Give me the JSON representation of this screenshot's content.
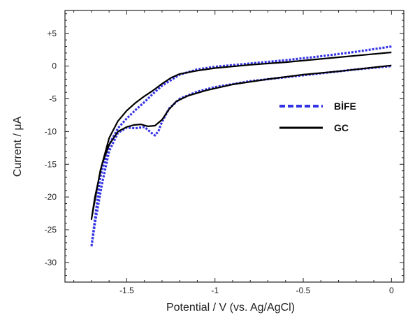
{
  "chart_data": {
    "type": "line",
    "title": "",
    "xlabel": "Potential / V (vs. Ag/AgCl)",
    "ylabel": "Current / μA",
    "xlim": [
      -1.85,
      0.07
    ],
    "ylim": [
      -33,
      8.5
    ],
    "x_ticks": [
      {
        "value": -1.5,
        "label": "-1.5"
      },
      {
        "value": -1.0,
        "label": "-1"
      },
      {
        "value": -0.5,
        "label": "-0.5"
      },
      {
        "value": 0.0,
        "label": "0"
      }
    ],
    "y_ticks": [
      {
        "value": 5,
        "label": "+5"
      },
      {
        "value": 0,
        "label": "0"
      },
      {
        "value": -5,
        "label": "-5"
      },
      {
        "value": -10,
        "label": "-10"
      },
      {
        "value": -15,
        "label": "-15"
      },
      {
        "value": -20,
        "label": "-20"
      },
      {
        "value": -25,
        "label": "-25"
      },
      {
        "value": -30,
        "label": "-30"
      }
    ],
    "grid": false,
    "legend_position": "right",
    "series": [
      {
        "name": "BİFE",
        "color": "#3333e6",
        "style": "dotted",
        "points": [
          [
            0.0,
            3.0
          ],
          [
            -0.2,
            2.2
          ],
          [
            -0.4,
            1.5
          ],
          [
            -0.6,
            0.9
          ],
          [
            -0.8,
            0.4
          ],
          [
            -1.0,
            -0.1
          ],
          [
            -1.1,
            -0.5
          ],
          [
            -1.2,
            -1.3
          ],
          [
            -1.3,
            -3.0
          ],
          [
            -1.35,
            -4.2
          ],
          [
            -1.4,
            -5.5
          ],
          [
            -1.45,
            -6.7
          ],
          [
            -1.5,
            -8.0
          ],
          [
            -1.55,
            -9.5
          ],
          [
            -1.6,
            -12.0
          ],
          [
            -1.65,
            -17.0
          ],
          [
            -1.7,
            -27.6
          ],
          [
            -1.68,
            -24.0
          ],
          [
            -1.64,
            -18.0
          ],
          [
            -1.6,
            -13.0
          ],
          [
            -1.55,
            -10.2
          ],
          [
            -1.5,
            -9.4
          ],
          [
            -1.45,
            -9.5
          ],
          [
            -1.4,
            -9.3
          ],
          [
            -1.36,
            -10.2
          ],
          [
            -1.34,
            -10.6
          ],
          [
            -1.32,
            -9.9
          ],
          [
            -1.3,
            -8.5
          ],
          [
            -1.26,
            -6.5
          ],
          [
            -1.2,
            -5.0
          ],
          [
            -1.1,
            -3.9
          ],
          [
            -1.0,
            -3.2
          ],
          [
            -0.8,
            -2.3
          ],
          [
            -0.6,
            -1.7
          ],
          [
            -0.4,
            -1.1
          ],
          [
            -0.2,
            -0.5
          ],
          [
            0.0,
            0.0
          ]
        ]
      },
      {
        "name": "GC",
        "color": "#000000",
        "style": "solid",
        "points": [
          [
            0.0,
            2.1
          ],
          [
            -0.2,
            1.6
          ],
          [
            -0.4,
            1.1
          ],
          [
            -0.6,
            0.6
          ],
          [
            -0.8,
            0.2
          ],
          [
            -1.0,
            -0.3
          ],
          [
            -1.1,
            -0.7
          ],
          [
            -1.2,
            -1.2
          ],
          [
            -1.25,
            -1.8
          ],
          [
            -1.3,
            -2.7
          ],
          [
            -1.35,
            -3.7
          ],
          [
            -1.4,
            -4.6
          ],
          [
            -1.45,
            -5.6
          ],
          [
            -1.5,
            -6.8
          ],
          [
            -1.55,
            -8.4
          ],
          [
            -1.6,
            -11.0
          ],
          [
            -1.65,
            -16.0
          ],
          [
            -1.7,
            -23.4
          ],
          [
            -1.68,
            -20.0
          ],
          [
            -1.64,
            -15.0
          ],
          [
            -1.6,
            -12.0
          ],
          [
            -1.55,
            -10.0
          ],
          [
            -1.5,
            -9.3
          ],
          [
            -1.46,
            -9.0
          ],
          [
            -1.42,
            -8.9
          ],
          [
            -1.38,
            -9.2
          ],
          [
            -1.34,
            -9.1
          ],
          [
            -1.3,
            -8.2
          ],
          [
            -1.26,
            -6.6
          ],
          [
            -1.22,
            -5.4
          ],
          [
            -1.15,
            -4.5
          ],
          [
            -1.05,
            -3.7
          ],
          [
            -0.9,
            -2.8
          ],
          [
            -0.7,
            -2.0
          ],
          [
            -0.5,
            -1.3
          ],
          [
            -0.3,
            -0.8
          ],
          [
            -0.1,
            -0.2
          ],
          [
            0.0,
            0.1
          ]
        ]
      }
    ]
  }
}
